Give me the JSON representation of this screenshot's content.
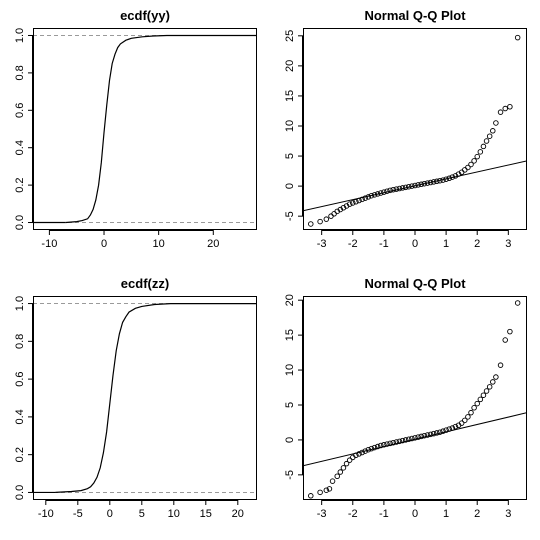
{
  "chart_data": [
    {
      "type": "line",
      "title": "ecdf(yy)",
      "xlabel": "",
      "ylabel": "",
      "xlim": [
        -13,
        28
      ],
      "ylim": [
        -0.04,
        1.04
      ],
      "x_ticks": [
        -10,
        0,
        10,
        20
      ],
      "y_ticks": [
        0.0,
        0.2,
        0.4,
        0.6,
        0.8,
        1.0
      ],
      "x_tick_labels": [
        "-10",
        "0",
        "10",
        "20"
      ],
      "y_tick_labels": [
        "0.0",
        "0.2",
        "0.4",
        "0.6",
        "0.8",
        "1.0"
      ],
      "reference_lines_y": [
        0,
        1
      ],
      "reference_line_style": "dashed-gray",
      "grid": false,
      "x": [
        -7,
        -5,
        -4,
        -3,
        -2.5,
        -2,
        -1.5,
        -1,
        -0.5,
        0,
        0.5,
        1,
        1.5,
        2,
        2.5,
        3,
        4,
        5,
        7,
        9,
        11.5
      ],
      "y": [
        0.0,
        0.005,
        0.01,
        0.02,
        0.04,
        0.07,
        0.12,
        0.2,
        0.32,
        0.48,
        0.63,
        0.76,
        0.85,
        0.9,
        0.935,
        0.955,
        0.975,
        0.985,
        0.993,
        0.997,
        1.0
      ]
    },
    {
      "type": "scatter",
      "title": "Normal Q-Q Plot",
      "xlabel": "",
      "ylabel": "",
      "xlim": [
        -3.6,
        3.6
      ],
      "ylim": [
        -7.3,
        26.3
      ],
      "x_ticks": [
        -3,
        -2,
        -1,
        0,
        1,
        2,
        3
      ],
      "y_ticks": [
        -5,
        0,
        5,
        10,
        15,
        20,
        25
      ],
      "x_tick_labels": [
        "-3",
        "-2",
        "-1",
        "0",
        "1",
        "2",
        "3"
      ],
      "y_tick_labels": [
        "-5",
        "0",
        "5",
        "10",
        "15",
        "20",
        "25"
      ],
      "grid": false,
      "reference_line": {
        "x": [
          -3.6,
          3.6
        ],
        "y": [
          -4.1,
          4.2
        ]
      },
      "x": [
        -3.35,
        -3.05,
        -2.85,
        -2.7,
        -2.6,
        -2.5,
        -2.4,
        -2.3,
        -2.2,
        -2.1,
        -2.0,
        -1.9,
        -1.8,
        -1.7,
        -1.6,
        -1.5,
        -1.4,
        -1.3,
        -1.2,
        -1.1,
        -1.0,
        -0.9,
        -0.8,
        -0.7,
        -0.6,
        -0.5,
        -0.4,
        -0.3,
        -0.2,
        -0.1,
        0.0,
        0.1,
        0.2,
        0.3,
        0.4,
        0.5,
        0.6,
        0.7,
        0.8,
        0.9,
        1.0,
        1.1,
        1.2,
        1.3,
        1.4,
        1.5,
        1.6,
        1.7,
        1.8,
        1.9,
        2.0,
        2.1,
        2.2,
        2.3,
        2.4,
        2.5,
        2.6,
        2.75,
        2.9,
        3.05,
        3.3
      ],
      "y": [
        -6.3,
        -5.9,
        -5.5,
        -5.0,
        -4.6,
        -4.2,
        -3.9,
        -3.6,
        -3.3,
        -3.0,
        -2.8,
        -2.6,
        -2.4,
        -2.2,
        -2.0,
        -1.8,
        -1.6,
        -1.45,
        -1.3,
        -1.15,
        -1.0,
        -0.85,
        -0.7,
        -0.6,
        -0.5,
        -0.4,
        -0.3,
        -0.2,
        -0.1,
        0.0,
        0.1,
        0.2,
        0.3,
        0.4,
        0.5,
        0.6,
        0.7,
        0.8,
        0.9,
        1.0,
        1.15,
        1.3,
        1.5,
        1.7,
        2.0,
        2.3,
        2.7,
        3.1,
        3.6,
        4.2,
        4.9,
        5.7,
        6.6,
        7.5,
        8.3,
        9.2,
        10.5,
        12.3,
        12.9,
        13.2,
        24.7
      ]
    },
    {
      "type": "line",
      "title": "ecdf(zz)",
      "xlabel": "",
      "ylabel": "",
      "xlim": [
        -12,
        23
      ],
      "ylim": [
        -0.04,
        1.04
      ],
      "x_ticks": [
        -10,
        -5,
        0,
        5,
        10,
        15,
        20
      ],
      "y_ticks": [
        0.0,
        0.2,
        0.4,
        0.6,
        0.8,
        1.0
      ],
      "x_tick_labels": [
        "-10",
        "-5",
        "0",
        "5",
        "10",
        "15",
        "20"
      ],
      "y_tick_labels": [
        "0.0",
        "0.2",
        "0.4",
        "0.6",
        "0.8",
        "1.0"
      ],
      "reference_lines_y": [
        0,
        1
      ],
      "reference_line_style": "dashed-gray",
      "grid": false,
      "x": [
        -8.5,
        -6,
        -4.5,
        -3.5,
        -3,
        -2.5,
        -2,
        -1.5,
        -1,
        -0.5,
        0,
        0.5,
        1,
        1.5,
        2,
        2.5,
        3,
        4,
        5,
        7,
        9.5
      ],
      "y": [
        0.0,
        0.005,
        0.01,
        0.02,
        0.03,
        0.05,
        0.08,
        0.13,
        0.21,
        0.32,
        0.47,
        0.62,
        0.75,
        0.84,
        0.9,
        0.93,
        0.955,
        0.975,
        0.985,
        0.995,
        1.0
      ]
    },
    {
      "type": "scatter",
      "title": "Normal Q-Q Plot",
      "xlabel": "",
      "ylabel": "",
      "xlim": [
        -3.6,
        3.6
      ],
      "ylim": [
        -8.6,
        20.6
      ],
      "x_ticks": [
        -3,
        -2,
        -1,
        0,
        1,
        2,
        3
      ],
      "y_ticks": [
        -5,
        0,
        5,
        10,
        15,
        20
      ],
      "x_tick_labels": [
        "-3",
        "-2",
        "-1",
        "0",
        "1",
        "2",
        "3"
      ],
      "y_tick_labels": [
        "-5",
        "0",
        "5",
        "10",
        "15",
        "20"
      ],
      "grid": false,
      "reference_line": {
        "x": [
          -3.6,
          3.6
        ],
        "y": [
          -3.7,
          3.9
        ]
      },
      "x": [
        -3.35,
        -3.05,
        -2.85,
        -2.75,
        -2.65,
        -2.5,
        -2.4,
        -2.3,
        -2.2,
        -2.1,
        -2.0,
        -1.9,
        -1.8,
        -1.7,
        -1.6,
        -1.5,
        -1.4,
        -1.3,
        -1.2,
        -1.1,
        -1.0,
        -0.9,
        -0.8,
        -0.7,
        -0.6,
        -0.5,
        -0.4,
        -0.3,
        -0.2,
        -0.1,
        0.0,
        0.1,
        0.2,
        0.3,
        0.4,
        0.5,
        0.6,
        0.7,
        0.8,
        0.9,
        1.0,
        1.1,
        1.2,
        1.3,
        1.4,
        1.5,
        1.6,
        1.7,
        1.8,
        1.9,
        2.0,
        2.1,
        2.2,
        2.3,
        2.4,
        2.5,
        2.6,
        2.75,
        2.9,
        3.05,
        3.3
      ],
      "y": [
        -8.0,
        -7.5,
        -7.2,
        -7.0,
        -5.9,
        -5.2,
        -4.6,
        -4.0,
        -3.4,
        -2.9,
        -2.5,
        -2.2,
        -2.0,
        -1.8,
        -1.6,
        -1.4,
        -1.25,
        -1.1,
        -0.95,
        -0.8,
        -0.7,
        -0.6,
        -0.5,
        -0.4,
        -0.3,
        -0.2,
        -0.1,
        0.0,
        0.1,
        0.2,
        0.3,
        0.4,
        0.5,
        0.6,
        0.7,
        0.8,
        0.9,
        1.0,
        1.1,
        1.25,
        1.4,
        1.55,
        1.7,
        1.9,
        2.1,
        2.4,
        2.8,
        3.3,
        3.9,
        4.6,
        5.2,
        5.8,
        6.4,
        7.0,
        7.6,
        8.3,
        9.0,
        10.7,
        14.3,
        15.5,
        19.6
      ]
    }
  ]
}
